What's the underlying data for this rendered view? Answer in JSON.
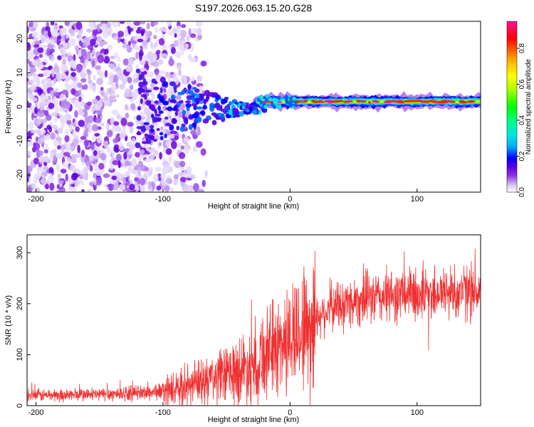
{
  "figure": {
    "title": "S197.2026.063.15.20.G28"
  },
  "chart_data": [
    {
      "type": "heatmap",
      "panel": "spectrogram",
      "xlabel": "Height of straight line (km)",
      "ylabel": "Frequency (Hz)",
      "xlim": [
        -207,
        150
      ],
      "ylim": [
        -25,
        25
      ],
      "xticks": [
        -200,
        -100,
        0,
        100
      ],
      "xtick_labels": [
        "-200",
        "-100",
        "0",
        "100"
      ],
      "yticks": [
        -20,
        -10,
        0,
        10,
        20
      ],
      "ytick_labels": [
        "-20",
        "-10",
        "0",
        "10",
        "20"
      ],
      "colorbar": {
        "label": "Normalized spectral amplitude",
        "range": [
          0.0,
          0.95
        ],
        "ticks": [
          0.0,
          0.2,
          0.4,
          0.6,
          0.8
        ],
        "tick_labels": [
          "0.0",
          "0.2",
          "0.4",
          "0.6",
          "0.8"
        ],
        "colormap_stops": [
          "#ffffff",
          "#dcc8f5",
          "#8a2be2",
          "#5a00e0",
          "#0000ff",
          "#00a0ff",
          "#00e5e5",
          "#00ff7f",
          "#00ff00",
          "#aaff00",
          "#ffff00",
          "#ffa500",
          "#ff0000",
          "#ff1493"
        ]
      },
      "features": {
        "noise_region_km": [
          -207,
          -65
        ],
        "transition_region_km": [
          -65,
          -25
        ],
        "tone_frequency_hz": 1.5,
        "tone_start_km": -25
      }
    },
    {
      "type": "line",
      "panel": "snr",
      "xlabel": "Height of straight line (km)",
      "ylabel": "SNR (10 * v/v)",
      "xlim": [
        -207,
        150
      ],
      "ylim": [
        0,
        335
      ],
      "xticks": [
        -200,
        -100,
        0,
        100
      ],
      "xtick_labels": [
        "-200",
        "-100",
        "0",
        "100"
      ],
      "yticks": [
        0,
        100,
        200,
        300
      ],
      "ytick_labels": [
        "0",
        "100",
        "200",
        "300"
      ],
      "series": [
        {
          "name": "SNR",
          "color": "#f03030",
          "trend_x": [
            -207,
            -150,
            -110,
            -90,
            -70,
            -50,
            -30,
            -15,
            0,
            20,
            40,
            60,
            80,
            100,
            120,
            150
          ],
          "trend_y": [
            20,
            22,
            26,
            32,
            45,
            60,
            80,
            110,
            130,
            175,
            200,
            210,
            215,
            220,
            222,
            225
          ]
        }
      ]
    }
  ]
}
